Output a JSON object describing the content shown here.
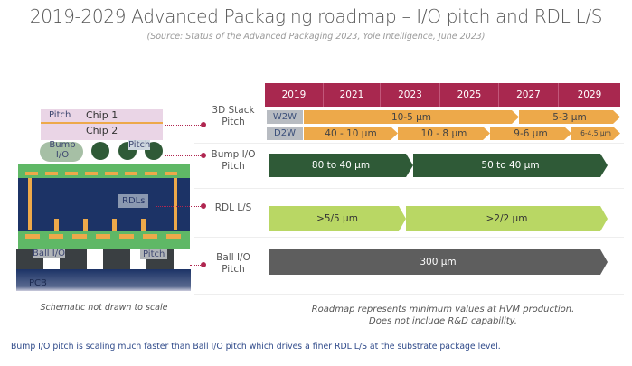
{
  "title": "2019-2029 Advanced Packaging roadmap – I/O pitch and RDL L/S",
  "source": "(Source: Status of the Advanced Packaging 2023, Yole Intelligence, June 2023)",
  "years": [
    "2019",
    "2021",
    "2023",
    "2025",
    "2027",
    "2029"
  ],
  "rows": {
    "stack": {
      "label": "3D Stack Pitch",
      "w2w_tag": "W2W",
      "d2w_tag": "D2W",
      "w2w": [
        "10-5 µm",
        "5-3 µm"
      ],
      "d2w": [
        "40 - 10 µm",
        "10 - 8 µm",
        "9-6 µm",
        "6-4.5 µm"
      ]
    },
    "bump": {
      "label": "Bump I/O Pitch",
      "values": [
        "80 to 40 µm",
        "50 to 40 µm"
      ]
    },
    "rdl": {
      "label": "RDL L/S",
      "values": [
        ">5/5 µm",
        ">2/2 µm"
      ]
    },
    "ball": {
      "label": "Ball I/O Pitch",
      "values": [
        "300 µm"
      ]
    }
  },
  "schematic": {
    "chip1": "Chip 1",
    "chip2": "Chip 2",
    "pitch": "Pitch",
    "bump": "Bump I/O",
    "rdls": "RDLs",
    "ball": "Ball I/O",
    "pcb": "PCB",
    "caption": "Schematic not drawn to scale"
  },
  "note": [
    "Roadmap represents minimum values at HVM production.",
    "Does not include R&D capability."
  ],
  "footer": "Bump I/O pitch is scaling much faster than Ball I/O pitch which drives a finer RDL L/S at the substrate package level.",
  "colors": {
    "header": "#a8284f",
    "orange": "#eda94a",
    "dark_green": "#2f5a37",
    "light_green": "#b9d764",
    "grey": "#5e5e5e",
    "navy": "#1c3366"
  }
}
